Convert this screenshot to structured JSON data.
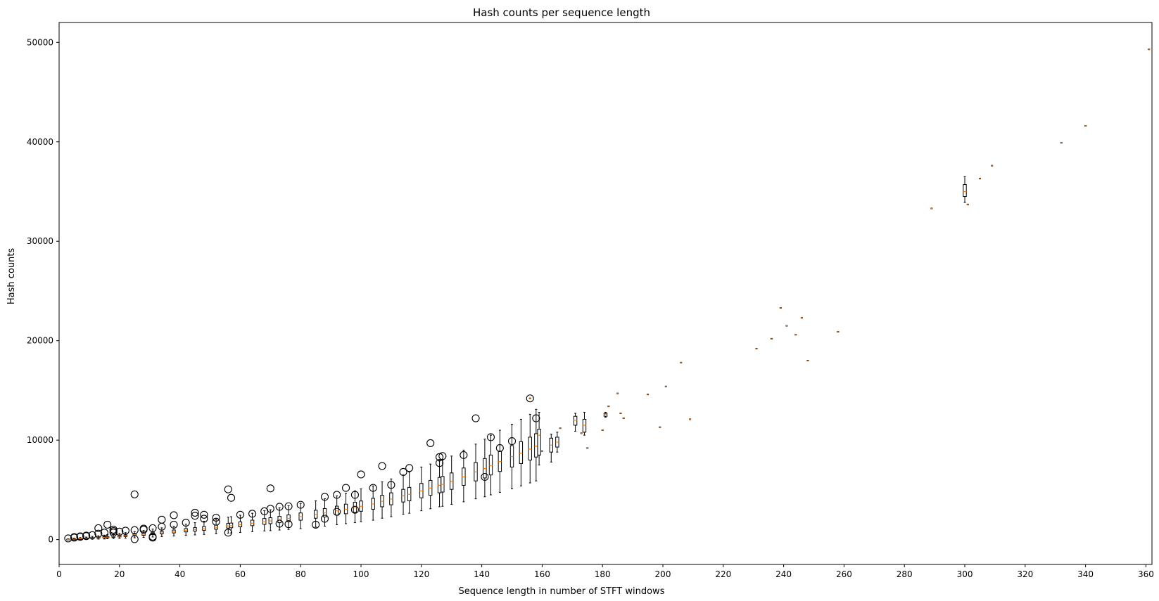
{
  "chart_data": {
    "type": "boxplot",
    "title": "Hash counts per sequence length",
    "xlabel": "Sequence length in number of STFT windows",
    "ylabel": "Hash counts",
    "xlim": [
      0,
      362
    ],
    "ylim": [
      -2500,
      52000
    ],
    "x_ticks": [
      0,
      20,
      40,
      60,
      80,
      100,
      120,
      140,
      160,
      180,
      200,
      220,
      240,
      260,
      280,
      300,
      320,
      340,
      360
    ],
    "y_ticks": [
      0,
      10000,
      20000,
      30000,
      40000,
      50000
    ],
    "grid": false,
    "colors": {
      "box": "#000000",
      "median": "#ff7f0e",
      "outlier": "#000000"
    },
    "boxes": [
      {
        "x": 3,
        "q1": 0,
        "med": 20,
        "q3": 40,
        "lo": 0,
        "hi": 80,
        "out": [
          120
        ]
      },
      {
        "x": 5,
        "q1": 30,
        "med": 50,
        "q3": 80,
        "lo": 0,
        "hi": 150,
        "out": [
          200,
          250
        ]
      },
      {
        "x": 7,
        "q1": 60,
        "med": 90,
        "q3": 120,
        "lo": 10,
        "hi": 200,
        "out": [
          280,
          320
        ]
      },
      {
        "x": 9,
        "q1": 80,
        "med": 120,
        "q3": 160,
        "lo": 20,
        "hi": 250,
        "out": [
          350,
          400
        ]
      },
      {
        "x": 11,
        "q1": 110,
        "med": 150,
        "q3": 200,
        "lo": 30,
        "hi": 320,
        "out": [
          450
        ]
      },
      {
        "x": 13,
        "q1": 140,
        "med": 190,
        "q3": 240,
        "lo": 50,
        "hi": 380,
        "out": [
          600,
          1150
        ]
      },
      {
        "x": 15,
        "q1": 170,
        "med": 230,
        "q3": 290,
        "lo": 60,
        "hi": 450,
        "out": [
          700
        ]
      },
      {
        "x": 16,
        "q1": 190,
        "med": 250,
        "q3": 320,
        "lo": 80,
        "hi": 500,
        "out": [
          1500
        ]
      },
      {
        "x": 18,
        "q1": 230,
        "med": 300,
        "q3": 370,
        "lo": 100,
        "hi": 560,
        "out": [
          700,
          850,
          1000
        ]
      },
      {
        "x": 20,
        "q1": 270,
        "med": 340,
        "q3": 420,
        "lo": 120,
        "hi": 620,
        "out": [
          800
        ]
      },
      {
        "x": 22,
        "q1": 310,
        "med": 390,
        "q3": 470,
        "lo": 140,
        "hi": 700,
        "out": [
          900
        ]
      },
      {
        "x": 25,
        "q1": 370,
        "med": 460,
        "q3": 560,
        "lo": 180,
        "hi": 800,
        "out": [
          4550,
          950,
          50
        ]
      },
      {
        "x": 28,
        "q1": 430,
        "med": 530,
        "q3": 650,
        "lo": 220,
        "hi": 920,
        "out": [
          1000,
          1100
        ]
      },
      {
        "x": 31,
        "q1": 500,
        "med": 610,
        "q3": 740,
        "lo": 260,
        "hi": 1050,
        "out": [
          200,
          300,
          1150
        ]
      },
      {
        "x": 34,
        "q1": 570,
        "med": 690,
        "q3": 830,
        "lo": 300,
        "hi": 1180,
        "out": [
          2000,
          1300
        ]
      },
      {
        "x": 38,
        "q1": 670,
        "med": 800,
        "q3": 960,
        "lo": 360,
        "hi": 1350,
        "out": [
          2450,
          1500
        ]
      },
      {
        "x": 42,
        "q1": 770,
        "med": 920,
        "q3": 1100,
        "lo": 420,
        "hi": 1550,
        "out": [
          1700
        ]
      },
      {
        "x": 45,
        "q1": 850,
        "med": 1010,
        "q3": 1200,
        "lo": 470,
        "hi": 1700,
        "out": [
          2700,
          2400
        ]
      },
      {
        "x": 48,
        "q1": 930,
        "med": 1100,
        "q3": 1310,
        "lo": 520,
        "hi": 1850,
        "out": [
          2500,
          2100
        ]
      },
      {
        "x": 52,
        "q1": 1040,
        "med": 1230,
        "q3": 1460,
        "lo": 580,
        "hi": 2050,
        "out": [
          2200,
          1800
        ]
      },
      {
        "x": 56,
        "q1": 1160,
        "med": 1370,
        "q3": 1620,
        "lo": 650,
        "hi": 2250,
        "out": [
          5050,
          700
        ]
      },
      {
        "x": 57,
        "q1": 1190,
        "med": 1400,
        "q3": 1660,
        "lo": 670,
        "hi": 2300,
        "out": [
          4200
        ]
      },
      {
        "x": 60,
        "q1": 1280,
        "med": 1500,
        "q3": 1780,
        "lo": 720,
        "hi": 2450,
        "out": [
          2500
        ]
      },
      {
        "x": 64,
        "q1": 1400,
        "med": 1650,
        "q3": 1950,
        "lo": 800,
        "hi": 2650,
        "out": [
          2600
        ]
      },
      {
        "x": 68,
        "q1": 1530,
        "med": 1800,
        "q3": 2120,
        "lo": 870,
        "hi": 2900,
        "out": [
          2850
        ]
      },
      {
        "x": 70,
        "q1": 1600,
        "med": 1880,
        "q3": 2200,
        "lo": 900,
        "hi": 3000,
        "out": [
          5150,
          3100
        ]
      },
      {
        "x": 73,
        "q1": 1700,
        "med": 2000,
        "q3": 2340,
        "lo": 960,
        "hi": 3200,
        "out": [
          1600,
          3300
        ]
      },
      {
        "x": 76,
        "q1": 1800,
        "med": 2120,
        "q3": 2480,
        "lo": 1020,
        "hi": 3400,
        "out": [
          1550,
          3350
        ]
      },
      {
        "x": 80,
        "q1": 1950,
        "med": 2300,
        "q3": 2680,
        "lo": 1100,
        "hi": 3650,
        "out": [
          3500
        ]
      },
      {
        "x": 85,
        "q1": 2150,
        "med": 2530,
        "q3": 2950,
        "lo": 1250,
        "hi": 3900,
        "out": [
          1500
        ]
      },
      {
        "x": 88,
        "q1": 2280,
        "med": 2680,
        "q3": 3120,
        "lo": 1350,
        "hi": 4100,
        "out": [
          4300,
          2100
        ]
      },
      {
        "x": 92,
        "q1": 2460,
        "med": 2890,
        "q3": 3360,
        "lo": 1500,
        "hi": 4400,
        "out": [
          4500,
          2800
        ]
      },
      {
        "x": 95,
        "q1": 2600,
        "med": 3060,
        "q3": 3560,
        "lo": 1600,
        "hi": 4650,
        "out": [
          5200
        ]
      },
      {
        "x": 98,
        "q1": 2740,
        "med": 3220,
        "q3": 3750,
        "lo": 1700,
        "hi": 4900,
        "out": [
          4500,
          3000
        ]
      },
      {
        "x": 100,
        "q1": 2850,
        "med": 3350,
        "q3": 3880,
        "lo": 1800,
        "hi": 5100,
        "out": [
          6550
        ]
      },
      {
        "x": 104,
        "q1": 3050,
        "med": 3580,
        "q3": 4150,
        "lo": 1950,
        "hi": 5400,
        "out": [
          5200
        ]
      },
      {
        "x": 107,
        "q1": 3300,
        "med": 3850,
        "q3": 4450,
        "lo": 2150,
        "hi": 5800,
        "out": [
          7400
        ]
      },
      {
        "x": 110,
        "q1": 3500,
        "med": 4080,
        "q3": 4700,
        "lo": 2300,
        "hi": 6100,
        "out": [
          5500
        ]
      },
      {
        "x": 114,
        "q1": 3780,
        "med": 4400,
        "q3": 5050,
        "lo": 2550,
        "hi": 6500,
        "out": [
          6800
        ]
      },
      {
        "x": 116,
        "q1": 3900,
        "med": 4550,
        "q3": 5250,
        "lo": 2650,
        "hi": 6800,
        "out": [
          7200
        ]
      },
      {
        "x": 120,
        "q1": 4200,
        "med": 4900,
        "q3": 5650,
        "lo": 2900,
        "hi": 7300,
        "out": []
      },
      {
        "x": 123,
        "q1": 4450,
        "med": 5180,
        "q3": 5950,
        "lo": 3100,
        "hi": 7600,
        "out": [
          9700
        ]
      },
      {
        "x": 126,
        "q1": 4700,
        "med": 5450,
        "q3": 6250,
        "lo": 3300,
        "hi": 7900,
        "out": [
          8300,
          7700
        ]
      },
      {
        "x": 127,
        "q1": 4780,
        "med": 5550,
        "q3": 6350,
        "lo": 3350,
        "hi": 8000,
        "out": [
          8400
        ]
      },
      {
        "x": 130,
        "q1": 5050,
        "med": 5850,
        "q3": 6700,
        "lo": 3550,
        "hi": 8400,
        "out": []
      },
      {
        "x": 134,
        "q1": 5450,
        "med": 6300,
        "q3": 7200,
        "lo": 3800,
        "hi": 9000,
        "out": [
          8500
        ]
      },
      {
        "x": 138,
        "q1": 5900,
        "med": 6800,
        "q3": 7750,
        "lo": 4100,
        "hi": 9600,
        "out": [
          12200
        ]
      },
      {
        "x": 141,
        "q1": 6200,
        "med": 7150,
        "q3": 8150,
        "lo": 4300,
        "hi": 10100,
        "out": [
          6300
        ]
      },
      {
        "x": 143,
        "q1": 6500,
        "med": 7450,
        "q3": 8500,
        "lo": 4500,
        "hi": 10500,
        "out": [
          10300
        ]
      },
      {
        "x": 146,
        "q1": 6850,
        "med": 7850,
        "q3": 8900,
        "lo": 4750,
        "hi": 11000,
        "out": [
          9200
        ]
      },
      {
        "x": 150,
        "q1": 7300,
        "med": 8350,
        "q3": 9450,
        "lo": 5100,
        "hi": 11600,
        "out": [
          9900
        ]
      },
      {
        "x": 153,
        "q1": 7650,
        "med": 8700,
        "q3": 9850,
        "lo": 5400,
        "hi": 12100,
        "out": []
      },
      {
        "x": 156,
        "q1": 8000,
        "med": 9100,
        "q3": 10300,
        "lo": 5700,
        "hi": 12600,
        "out": [
          14200
        ]
      },
      {
        "x": 158,
        "q1": 8300,
        "med": 9400,
        "q3": 10650,
        "lo": 5900,
        "hi": 13100,
        "out": [
          12200
        ]
      },
      {
        "x": 159,
        "q1": 8500,
        "med": 10500,
        "q3": 11100,
        "lo": 7500,
        "hi": 12800,
        "out": []
      },
      {
        "x": 163,
        "q1": 8800,
        "med": 9500,
        "q3": 10200,
        "lo": 7800,
        "hi": 10600,
        "out": []
      },
      {
        "x": 165,
        "q1": 9300,
        "med": 9800,
        "q3": 10300,
        "lo": 8800,
        "hi": 10800,
        "out": []
      },
      {
        "x": 171,
        "q1": 11500,
        "med": 12000,
        "q3": 12400,
        "lo": 10900,
        "hi": 12700,
        "out": []
      },
      {
        "x": 174,
        "q1": 10800,
        "med": 11500,
        "q3": 12100,
        "lo": 10500,
        "hi": 12800,
        "out": []
      },
      {
        "x": 181,
        "q1": 12400,
        "med": 12600,
        "q3": 12700,
        "lo": 12300,
        "hi": 12800,
        "out": []
      },
      {
        "x": 300,
        "q1": 34500,
        "med": 35000,
        "q3": 35700,
        "lo": 33900,
        "hi": 36500,
        "out": []
      }
    ],
    "singles": [
      {
        "x": 156,
        "y": 14200
      },
      {
        "x": 160,
        "y": 8900
      },
      {
        "x": 166,
        "y": 11200
      },
      {
        "x": 173,
        "y": 10700
      },
      {
        "x": 175,
        "y": 9200
      },
      {
        "x": 180,
        "y": 11000
      },
      {
        "x": 182,
        "y": 13400
      },
      {
        "x": 185,
        "y": 14700
      },
      {
        "x": 186,
        "y": 12700
      },
      {
        "x": 187,
        "y": 12200
      },
      {
        "x": 195,
        "y": 14600
      },
      {
        "x": 199,
        "y": 11300
      },
      {
        "x": 201,
        "y": 15400
      },
      {
        "x": 206,
        "y": 17800
      },
      {
        "x": 209,
        "y": 12100
      },
      {
        "x": 231,
        "y": 19200
      },
      {
        "x": 236,
        "y": 20200
      },
      {
        "x": 239,
        "y": 23300
      },
      {
        "x": 241,
        "y": 21500
      },
      {
        "x": 244,
        "y": 20600
      },
      {
        "x": 246,
        "y": 22300
      },
      {
        "x": 248,
        "y": 18000
      },
      {
        "x": 258,
        "y": 20900
      },
      {
        "x": 289,
        "y": 33300
      },
      {
        "x": 301,
        "y": 33700
      },
      {
        "x": 305,
        "y": 36300
      },
      {
        "x": 309,
        "y": 37600
      },
      {
        "x": 332,
        "y": 39900
      },
      {
        "x": 340,
        "y": 41600
      },
      {
        "x": 361,
        "y": 49300
      }
    ]
  }
}
